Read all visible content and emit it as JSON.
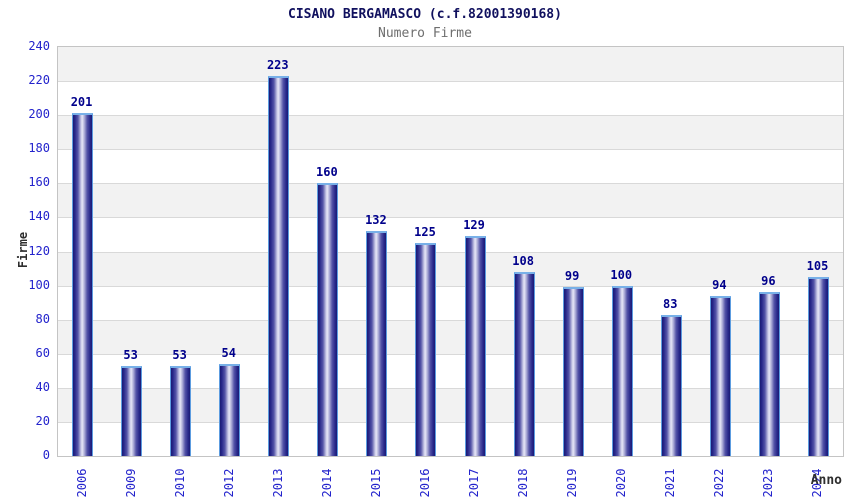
{
  "chart_data": {
    "type": "bar",
    "title": "CISANO BERGAMASCO (c.f.82001390168)",
    "subtitle": "Numero Firme",
    "xlabel": "Anno",
    "ylabel": "Firme",
    "categories": [
      "2006",
      "2009",
      "2010",
      "2012",
      "2013",
      "2014",
      "2015",
      "2016",
      "2017",
      "2018",
      "2019",
      "2020",
      "2021",
      "2022",
      "2023",
      "2024"
    ],
    "values": [
      201,
      53,
      53,
      54,
      223,
      160,
      132,
      125,
      129,
      108,
      99,
      100,
      83,
      94,
      96,
      105
    ],
    "ylim": [
      0,
      240
    ],
    "ytick_step": 20,
    "legend": "none",
    "grid": "horizontal-bands",
    "colors": {
      "title": "#10105e",
      "subtitle": "#6e6e6e",
      "tick_label": "#2323cc",
      "value_label": "#00008b",
      "axis_title": "#2e2e2e",
      "band_gray": "#f2f2f2",
      "gridline": "#d9d9d9",
      "plot_border": "#c4c4c4",
      "bar_edge_dark": "#1b1b75",
      "bar_mid": "#5555a8",
      "bar_center_light": "#e8e8f8",
      "bar_border": "#5c9ce0",
      "bar_cap": "#78b0e8"
    }
  }
}
